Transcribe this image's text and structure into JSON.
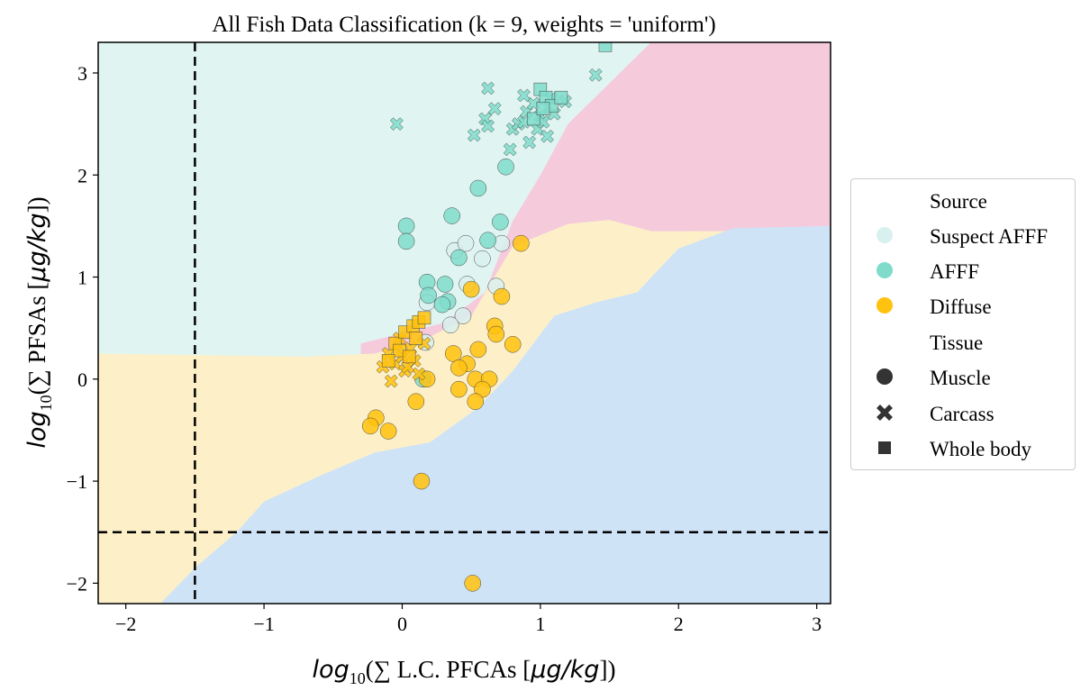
{
  "chart_data": {
    "type": "scatter",
    "title": "All Fish Data Classification (k = 9, weights = 'uniform')",
    "xlabel_math": "log",
    "xlabel_sub": "10",
    "xlabel_text": "(∑ L.C. PFCAs [",
    "xlabel_unit": "μg/kg",
    "xlabel_close": "])",
    "ylabel_math": "log",
    "ylabel_sub": "10",
    "ylabel_text": "(∑ PFSAs [",
    "ylabel_unit": "μg/kg",
    "ylabel_close": "])",
    "xlim": [
      -2.2,
      3.1
    ],
    "ylim": [
      -2.2,
      3.3
    ],
    "xticks": [
      -2,
      -1,
      0,
      1,
      2,
      3
    ],
    "xtick_labels": [
      "−2",
      "−1",
      "0",
      "1",
      "2",
      "3"
    ],
    "yticks": [
      -2,
      -1,
      0,
      1,
      2,
      3
    ],
    "ytick_labels": [
      "−2",
      "−1",
      "0",
      "1",
      "2",
      "3"
    ],
    "grid": false,
    "legend_position": "right, outside plot",
    "threshold_lines": {
      "x": -1.5,
      "y": -1.5,
      "style": "dashed"
    },
    "colors": {
      "suspect_afff": "#d8f0ee",
      "afff": "#7fdccb",
      "diffuse": "#ffc20e",
      "region_suspect": "#e0f5f2",
      "region_afff": "#f5cbdc",
      "region_diffuse": "#fdf0c8",
      "region_blue": "#cfe3f7"
    },
    "regions": {
      "diffuse_boundary": [
        [
          -2.2,
          0.25
        ],
        [
          -0.7,
          0.22
        ],
        [
          -0.2,
          0.25
        ],
        [
          0.15,
          0.38
        ],
        [
          0.5,
          0.62
        ],
        [
          0.8,
          1.3
        ],
        [
          1.2,
          1.52
        ],
        [
          1.5,
          1.56
        ],
        [
          1.8,
          1.45
        ]
      ],
      "blue_boundary": [
        [
          -1.75,
          -2.2
        ],
        [
          -1.5,
          -1.85
        ],
        [
          -1.2,
          -1.5
        ],
        [
          -1.0,
          -1.2
        ],
        [
          -0.6,
          -0.95
        ],
        [
          -0.2,
          -0.72
        ],
        [
          0.2,
          -0.62
        ],
        [
          0.55,
          -0.28
        ],
        [
          0.8,
          0.08
        ],
        [
          1.1,
          0.62
        ],
        [
          1.4,
          0.75
        ],
        [
          1.7,
          0.85
        ],
        [
          2.0,
          1.28
        ],
        [
          2.4,
          1.48
        ],
        [
          3.1,
          1.5
        ]
      ],
      "pink_boundary": [
        [
          -0.3,
          0.35
        ],
        [
          0.3,
          0.55
        ],
        [
          0.6,
          0.85
        ],
        [
          0.8,
          1.55
        ],
        [
          1.0,
          2.0
        ],
        [
          1.2,
          2.5
        ],
        [
          1.5,
          2.9
        ],
        [
          1.8,
          3.3
        ]
      ]
    },
    "series": [
      {
        "name": "Suspect AFFF",
        "points": [
          {
            "tissue": "muscle",
            "x": 0.38,
            "y": 1.26
          },
          {
            "tissue": "muscle",
            "x": 0.46,
            "y": 1.33
          },
          {
            "tissue": "muscle",
            "x": 0.58,
            "y": 1.18
          },
          {
            "tissue": "muscle",
            "x": 0.68,
            "y": 0.91
          },
          {
            "tissue": "muscle",
            "x": 0.47,
            "y": 0.93
          },
          {
            "tissue": "muscle",
            "x": 0.44,
            "y": 0.62
          },
          {
            "tissue": "muscle",
            "x": 0.35,
            "y": 0.53
          },
          {
            "tissue": "muscle",
            "x": 0.18,
            "y": 0.75
          },
          {
            "tissue": "muscle",
            "x": 0.72,
            "y": 1.33
          },
          {
            "tissue": "muscle",
            "x": 0.17,
            "y": 0.36
          }
        ]
      },
      {
        "name": "AFFF",
        "points": [
          {
            "tissue": "muscle",
            "x": 0.03,
            "y": 1.5
          },
          {
            "tissue": "muscle",
            "x": 0.03,
            "y": 1.35
          },
          {
            "tissue": "muscle",
            "x": 0.36,
            "y": 1.6
          },
          {
            "tissue": "muscle",
            "x": 0.55,
            "y": 1.87
          },
          {
            "tissue": "muscle",
            "x": 0.75,
            "y": 2.08
          },
          {
            "tissue": "muscle",
            "x": 0.71,
            "y": 1.54
          },
          {
            "tissue": "muscle",
            "x": 0.62,
            "y": 1.36
          },
          {
            "tissue": "muscle",
            "x": 0.41,
            "y": 1.19
          },
          {
            "tissue": "muscle",
            "x": 0.18,
            "y": 0.95
          },
          {
            "tissue": "muscle",
            "x": 0.19,
            "y": 0.82
          },
          {
            "tissue": "muscle",
            "x": 0.31,
            "y": 0.93
          },
          {
            "tissue": "muscle",
            "x": 0.33,
            "y": 0.76
          },
          {
            "tissue": "muscle",
            "x": 0.29,
            "y": 0.73
          },
          {
            "tissue": "muscle",
            "x": 0.15,
            "y": 0.0
          },
          {
            "tissue": "carcass",
            "x": -0.04,
            "y": 2.5
          },
          {
            "tissue": "carcass",
            "x": 0.62,
            "y": 2.85
          },
          {
            "tissue": "carcass",
            "x": 0.52,
            "y": 2.39
          },
          {
            "tissue": "carcass",
            "x": 0.6,
            "y": 2.55
          },
          {
            "tissue": "carcass",
            "x": 0.67,
            "y": 2.65
          },
          {
            "tissue": "carcass",
            "x": 0.62,
            "y": 2.48
          },
          {
            "tissue": "carcass",
            "x": 0.78,
            "y": 2.25
          },
          {
            "tissue": "carcass",
            "x": 0.8,
            "y": 2.45
          },
          {
            "tissue": "carcass",
            "x": 0.84,
            "y": 2.5
          },
          {
            "tissue": "carcass",
            "x": 0.88,
            "y": 2.52
          },
          {
            "tissue": "carcass",
            "x": 0.9,
            "y": 2.62
          },
          {
            "tissue": "carcass",
            "x": 0.92,
            "y": 2.32
          },
          {
            "tissue": "carcass",
            "x": 0.95,
            "y": 2.7
          },
          {
            "tissue": "carcass",
            "x": 0.98,
            "y": 2.45
          },
          {
            "tissue": "carcass",
            "x": 1.0,
            "y": 2.58
          },
          {
            "tissue": "carcass",
            "x": 1.02,
            "y": 2.52
          },
          {
            "tissue": "carcass",
            "x": 1.05,
            "y": 2.38
          },
          {
            "tissue": "carcass",
            "x": 1.08,
            "y": 2.75
          },
          {
            "tissue": "carcass",
            "x": 1.1,
            "y": 2.6
          },
          {
            "tissue": "carcass",
            "x": 1.18,
            "y": 2.72
          },
          {
            "tissue": "carcass",
            "x": 0.88,
            "y": 2.78
          },
          {
            "tissue": "carcass",
            "x": 1.4,
            "y": 2.98
          },
          {
            "tissue": "whole body",
            "x": 1.0,
            "y": 2.84
          },
          {
            "tissue": "whole body",
            "x": 1.04,
            "y": 2.76
          },
          {
            "tissue": "whole body",
            "x": 1.08,
            "y": 2.68
          },
          {
            "tissue": "whole body",
            "x": 1.15,
            "y": 2.76
          },
          {
            "tissue": "whole body",
            "x": 0.95,
            "y": 2.55
          },
          {
            "tissue": "whole body",
            "x": 1.02,
            "y": 2.65
          },
          {
            "tissue": "whole body",
            "x": 1.47,
            "y": 3.27
          }
        ]
      },
      {
        "name": "Diffuse",
        "points": [
          {
            "tissue": "muscle",
            "x": 0.86,
            "y": 1.33
          },
          {
            "tissue": "muscle",
            "x": 0.5,
            "y": 0.88
          },
          {
            "tissue": "muscle",
            "x": 0.72,
            "y": 0.81
          },
          {
            "tissue": "muscle",
            "x": 0.67,
            "y": 0.52
          },
          {
            "tissue": "muscle",
            "x": 0.68,
            "y": 0.44
          },
          {
            "tissue": "muscle",
            "x": 0.8,
            "y": 0.34
          },
          {
            "tissue": "muscle",
            "x": 0.55,
            "y": 0.29
          },
          {
            "tissue": "muscle",
            "x": 0.37,
            "y": 0.25
          },
          {
            "tissue": "muscle",
            "x": 0.47,
            "y": 0.15
          },
          {
            "tissue": "muscle",
            "x": 0.41,
            "y": 0.11
          },
          {
            "tissue": "muscle",
            "x": 0.53,
            "y": 0.0
          },
          {
            "tissue": "muscle",
            "x": 0.63,
            "y": 0.0
          },
          {
            "tissue": "muscle",
            "x": 0.58,
            "y": -0.1
          },
          {
            "tissue": "muscle",
            "x": 0.41,
            "y": -0.1
          },
          {
            "tissue": "muscle",
            "x": 0.53,
            "y": -0.22
          },
          {
            "tissue": "muscle",
            "x": 0.18,
            "y": 0.0
          },
          {
            "tissue": "muscle",
            "x": 0.1,
            "y": -0.22
          },
          {
            "tissue": "muscle",
            "x": -0.19,
            "y": -0.38
          },
          {
            "tissue": "muscle",
            "x": -0.23,
            "y": -0.46
          },
          {
            "tissue": "muscle",
            "x": -0.1,
            "y": -0.51
          },
          {
            "tissue": "muscle",
            "x": 0.14,
            "y": -1.0
          },
          {
            "tissue": "muscle",
            "x": 0.51,
            "y": -2.0
          },
          {
            "tissue": "carcass",
            "x": -0.1,
            "y": 0.25
          },
          {
            "tissue": "carcass",
            "x": -0.14,
            "y": 0.12
          },
          {
            "tissue": "carcass",
            "x": -0.08,
            "y": -0.02
          },
          {
            "tissue": "carcass",
            "x": -0.05,
            "y": 0.15
          },
          {
            "tissue": "carcass",
            "x": 0.0,
            "y": 0.22
          },
          {
            "tissue": "carcass",
            "x": 0.02,
            "y": 0.08
          },
          {
            "tissue": "carcass",
            "x": 0.06,
            "y": 0.3
          },
          {
            "tissue": "carcass",
            "x": 0.09,
            "y": 0.18
          },
          {
            "tissue": "carcass",
            "x": 0.12,
            "y": 0.05
          },
          {
            "tissue": "carcass",
            "x": 0.16,
            "y": 0.35
          },
          {
            "tissue": "carcass",
            "x": -0.02,
            "y": 0.4
          },
          {
            "tissue": "carcass",
            "x": 0.04,
            "y": 0.12
          },
          {
            "tissue": "whole body",
            "x": -0.05,
            "y": 0.35
          },
          {
            "tissue": "whole body",
            "x": 0.02,
            "y": 0.46
          },
          {
            "tissue": "whole body",
            "x": 0.08,
            "y": 0.52
          },
          {
            "tissue": "whole body",
            "x": 0.12,
            "y": 0.56
          },
          {
            "tissue": "whole body",
            "x": 0.16,
            "y": 0.6
          },
          {
            "tissue": "whole body",
            "x": 0.1,
            "y": 0.4
          },
          {
            "tissue": "whole body",
            "x": -0.02,
            "y": 0.28
          },
          {
            "tissue": "whole body",
            "x": 0.05,
            "y": 0.22
          },
          {
            "tissue": "whole body",
            "x": -0.1,
            "y": 0.18
          }
        ]
      }
    ]
  },
  "legend": {
    "source_header": "Source",
    "suspect_label": "Suspect AFFF",
    "afff_label": "AFFF",
    "diffuse_label": "Diffuse",
    "tissue_header": "Tissue",
    "muscle_label": "Muscle",
    "carcass_label": "Carcass",
    "wholebody_label": "Whole body"
  }
}
